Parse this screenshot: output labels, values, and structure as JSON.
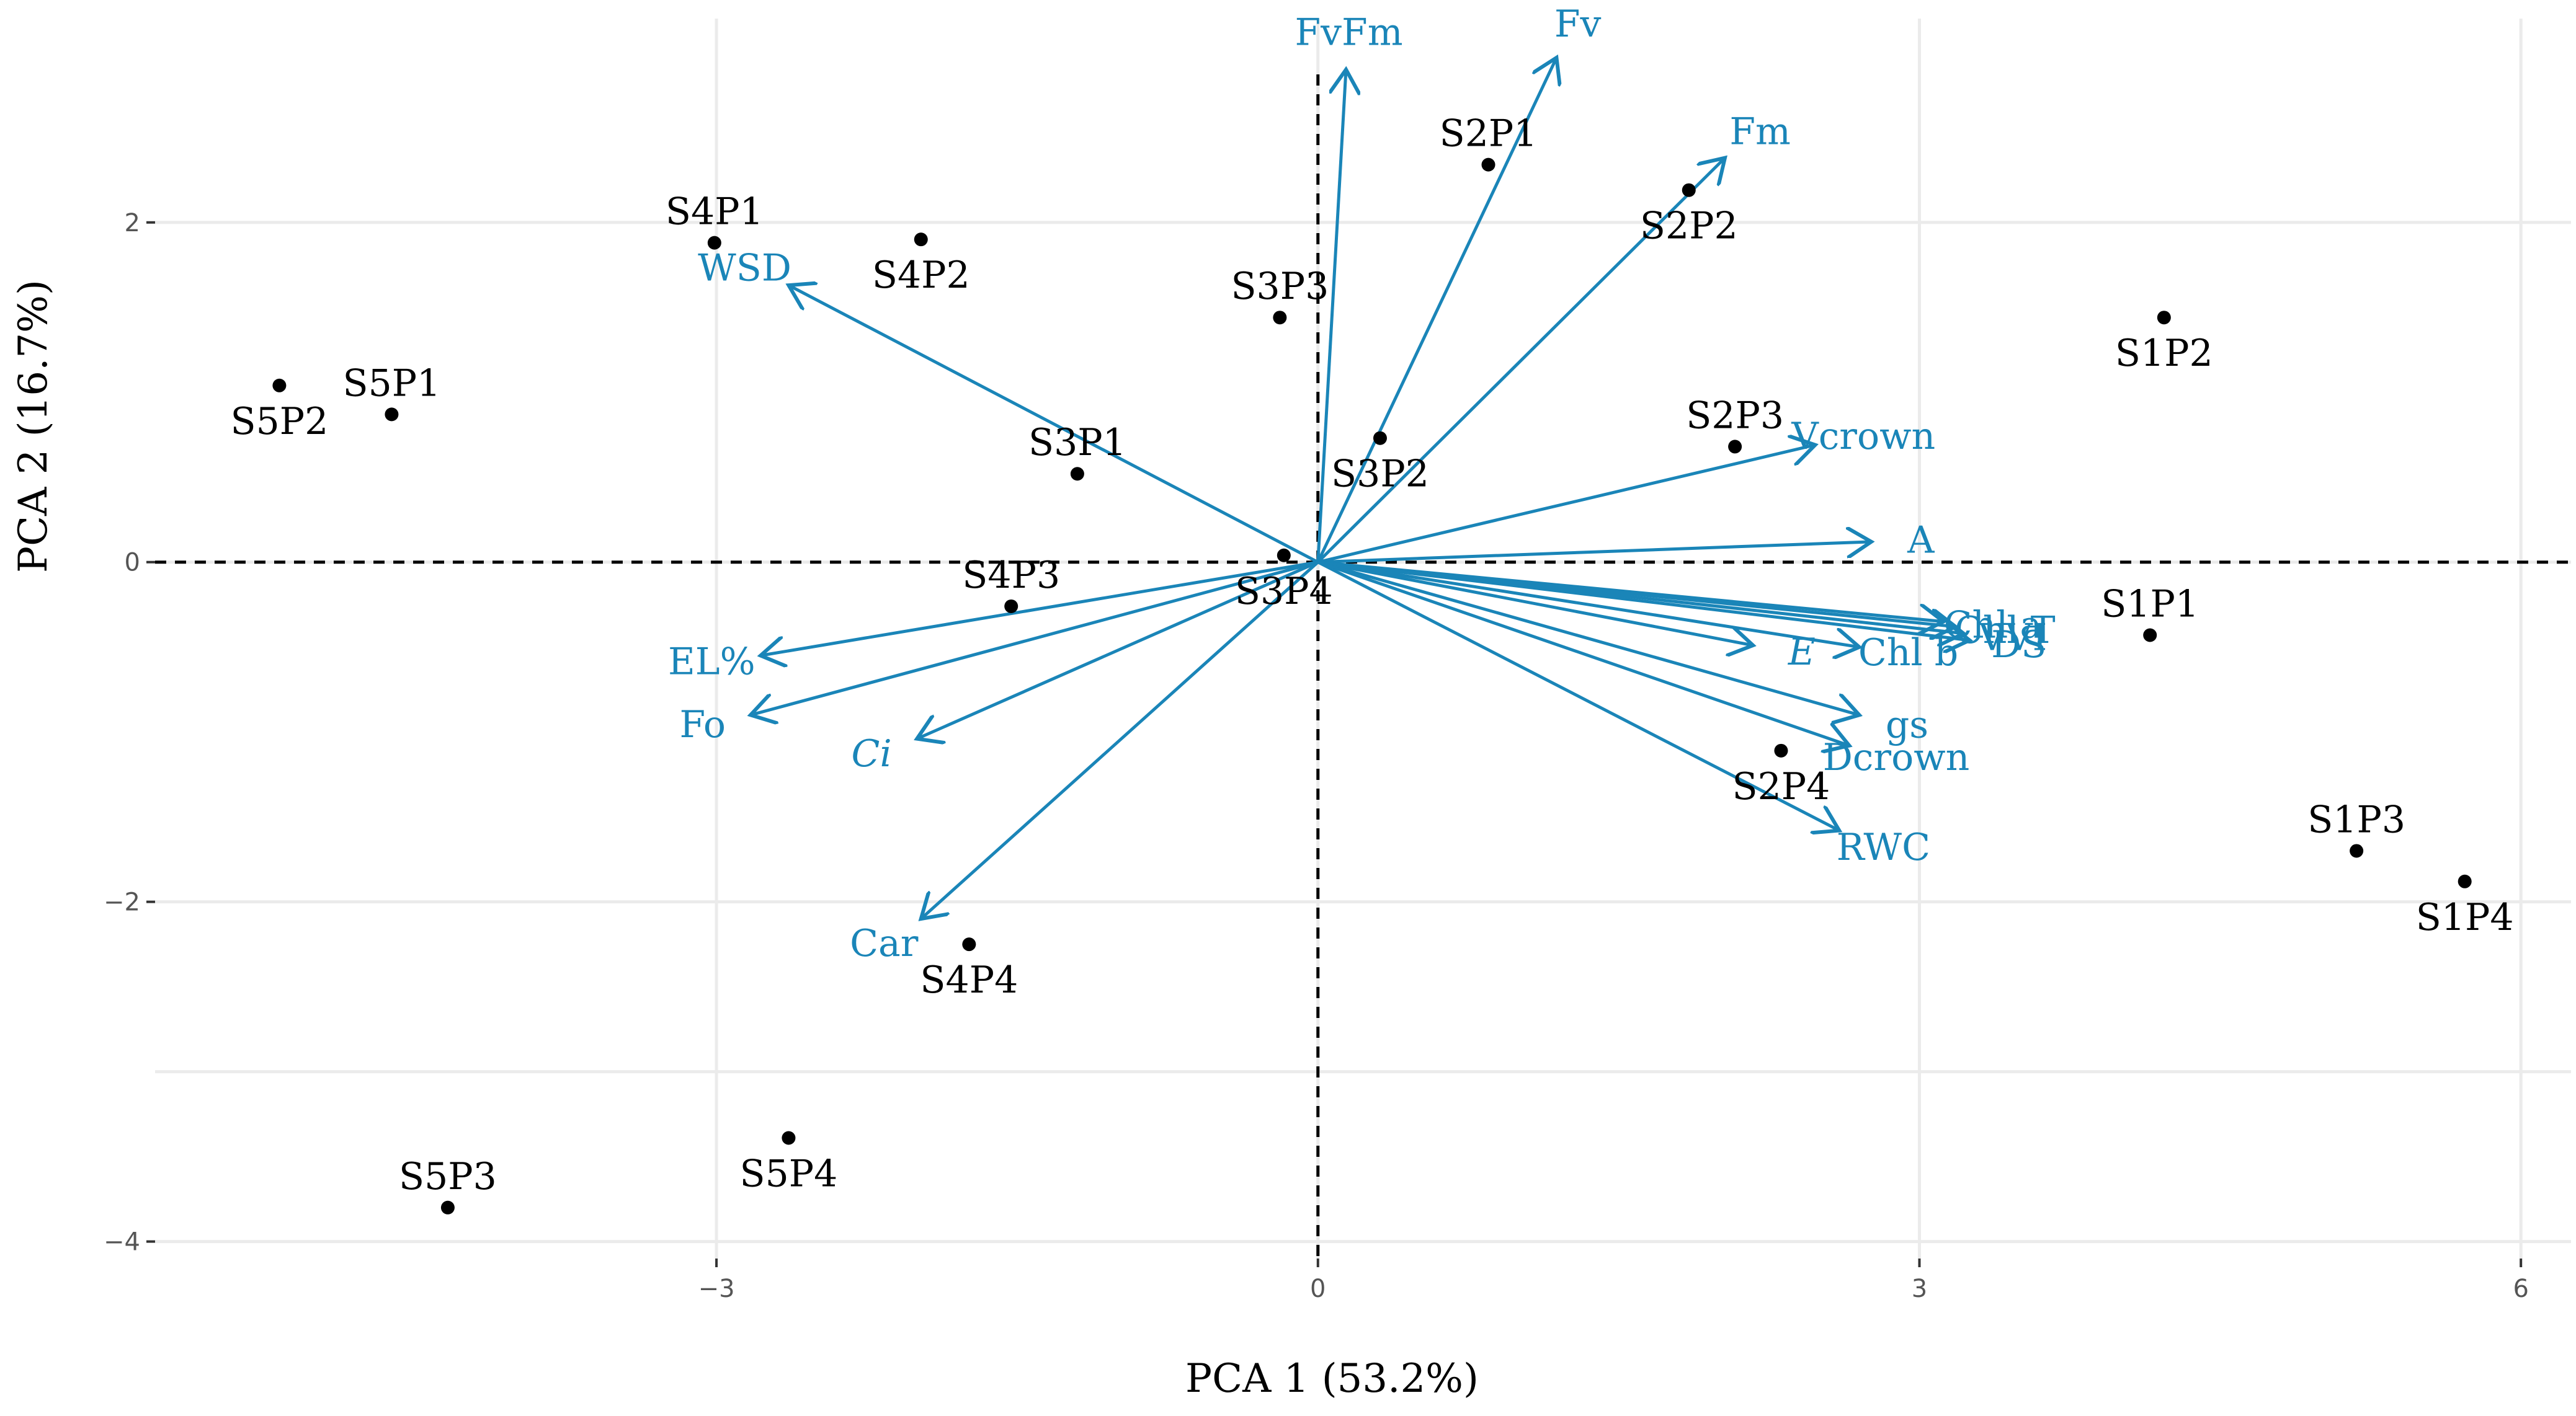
{
  "chart_data": {
    "type": "scatter",
    "subtype": "pca-biplot",
    "xlabel": "PCA 1 (53.2%)",
    "ylabel": "PCA 2 (16.7%)",
    "xlim": [
      -5.8,
      6.25
    ],
    "ylim": [
      -4.1,
      3.2
    ],
    "x_ticks": [
      -3,
      0,
      3,
      6
    ],
    "y_ticks": [
      -4,
      -2,
      0,
      2
    ],
    "x_tick_labels": [
      "−3",
      "0",
      "3",
      "6"
    ],
    "y_tick_labels": [
      "−4",
      "−2",
      "0",
      "2"
    ],
    "grid": true,
    "loading_color": "#1a85b8",
    "point_color": "#000000",
    "points": [
      {
        "label": "S1P1",
        "x": 4.15,
        "y": -0.43
      },
      {
        "label": "S1P2",
        "x": 4.22,
        "y": 1.44
      },
      {
        "label": "S1P3",
        "x": 5.18,
        "y": -1.7
      },
      {
        "label": "S1P4",
        "x": 5.72,
        "y": -1.88
      },
      {
        "label": "S2P1",
        "x": 0.85,
        "y": 2.34
      },
      {
        "label": "S2P2",
        "x": 1.85,
        "y": 2.19
      },
      {
        "label": "S2P3",
        "x": 2.08,
        "y": 0.68
      },
      {
        "label": "S2P4",
        "x": 2.31,
        "y": -1.11
      },
      {
        "label": "S3P1",
        "x": -1.2,
        "y": 0.52
      },
      {
        "label": "S3P2",
        "x": 0.31,
        "y": 0.73
      },
      {
        "label": "S3P3",
        "x": -0.19,
        "y": 1.44
      },
      {
        "label": "S3P4",
        "x": -0.17,
        "y": 0.04
      },
      {
        "label": "S4P1",
        "x": -3.01,
        "y": 1.88
      },
      {
        "label": "S4P2",
        "x": -1.98,
        "y": 1.9
      },
      {
        "label": "S4P3",
        "x": -1.53,
        "y": -0.26
      },
      {
        "label": "S4P4",
        "x": -1.74,
        "y": -2.25
      },
      {
        "label": "S5P1",
        "x": -4.62,
        "y": 0.87
      },
      {
        "label": "S5P2",
        "x": -5.18,
        "y": 1.04
      },
      {
        "label": "S5P3",
        "x": -4.34,
        "y": -3.8
      },
      {
        "label": "S5P4",
        "x": -2.64,
        "y": -3.39
      }
    ],
    "loadings": [
      {
        "label": "FvFm",
        "x": 0.14,
        "y": 2.9,
        "italic": false
      },
      {
        "label": "Fv",
        "x": 1.19,
        "y": 2.97,
        "italic": false
      },
      {
        "label": "Fm",
        "x": 2.03,
        "y": 2.38,
        "italic": false
      },
      {
        "label": "WSD",
        "x": -2.64,
        "y": 1.63,
        "italic": false
      },
      {
        "label": "Vcrown",
        "x": 2.48,
        "y": 0.69,
        "italic": false
      },
      {
        "label": "A",
        "x": 2.76,
        "y": 0.12,
        "italic": false
      },
      {
        "label": "Chl a",
        "x": 3.12,
        "y": -0.35,
        "italic": false
      },
      {
        "label": "Chl T",
        "x": 3.18,
        "y": -0.38,
        "italic": false
      },
      {
        "label": "VVI",
        "x": 3.22,
        "y": -0.42,
        "italic": false
      },
      {
        "label": "DS",
        "x": 3.25,
        "y": -0.46,
        "italic": false
      },
      {
        "label": "E",
        "x": 2.17,
        "y": -0.49,
        "italic": true
      },
      {
        "label": "Chl b",
        "x": 2.7,
        "y": -0.5,
        "italic": false
      },
      {
        "label": "gs",
        "x": 2.7,
        "y": -0.9,
        "italic": false
      },
      {
        "label": "Dcrown",
        "x": 2.65,
        "y": -1.08,
        "italic": false
      },
      {
        "label": "RWC",
        "x": 2.6,
        "y": -1.58,
        "italic": false
      },
      {
        "label": "EL%",
        "x": -2.78,
        "y": -0.55,
        "italic": false
      },
      {
        "label": "Fo",
        "x": -2.83,
        "y": -0.9,
        "italic": false
      },
      {
        "label": "Ci",
        "x": -2.0,
        "y": -1.04,
        "italic": true
      },
      {
        "label": "Car",
        "x": -1.98,
        "y": -2.1,
        "italic": false
      }
    ]
  }
}
